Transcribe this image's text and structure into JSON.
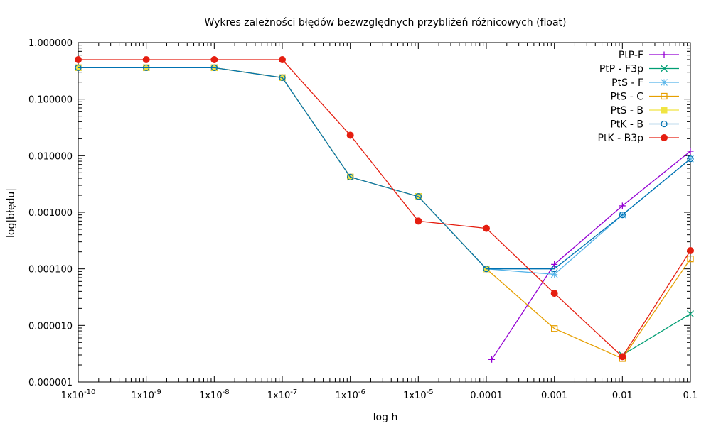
{
  "chart_data": {
    "type": "line",
    "title": "Wykres zależności błędów bezwzględnych przybliżeń różnicowych (float)",
    "xlabel": "log h",
    "ylabel": "log|błędu|",
    "x_scale": "log",
    "y_scale": "log",
    "xlim": [
      1e-10,
      0.1
    ],
    "ylim": [
      1e-06,
      1
    ],
    "x_ticks": [
      {
        "value": 1e-10,
        "base": "1x10",
        "exp": "-10"
      },
      {
        "value": 1e-09,
        "base": "1x10",
        "exp": "-9"
      },
      {
        "value": 1e-08,
        "base": "1x10",
        "exp": "-8"
      },
      {
        "value": 1e-07,
        "base": "1x10",
        "exp": "-7"
      },
      {
        "value": 1e-06,
        "base": "1x10",
        "exp": "-6"
      },
      {
        "value": 1e-05,
        "base": "1x10",
        "exp": "-5"
      },
      {
        "value": 0.0001,
        "base": "0.0001",
        "exp": ""
      },
      {
        "value": 0.001,
        "base": "0.001",
        "exp": ""
      },
      {
        "value": 0.01,
        "base": "0.01",
        "exp": ""
      },
      {
        "value": 0.1,
        "base": "0.1",
        "exp": ""
      }
    ],
    "y_ticks": [
      {
        "value": 1,
        "label": "1.000000"
      },
      {
        "value": 0.1,
        "label": "0.100000"
      },
      {
        "value": 0.01,
        "label": "0.010000"
      },
      {
        "value": 0.001,
        "label": "0.001000"
      },
      {
        "value": 0.0001,
        "label": "0.000100"
      },
      {
        "value": 1e-05,
        "label": "0.000010"
      },
      {
        "value": 1e-06,
        "label": "0.000001"
      }
    ],
    "grid": false,
    "legend_position": "top-right",
    "series": [
      {
        "name": "PtP-F",
        "color": "#9400d3",
        "marker": "plus",
        "x": [
          0.00012,
          0.001,
          0.01,
          0.1
        ],
        "y": [
          2.5e-06,
          0.00012,
          0.0013,
          0.012
        ]
      },
      {
        "name": "PtP - F3p",
        "color": "#009e73",
        "marker": "cross",
        "x": [
          0.01,
          0.1
        ],
        "y": [
          3e-06,
          1.6e-05
        ]
      },
      {
        "name": "PtS - F",
        "color": "#56b4e9",
        "marker": "star",
        "x": [
          1e-10,
          1e-09,
          1e-08,
          1e-07,
          1e-06,
          1e-05,
          0.0001,
          0.001,
          0.01,
          0.1
        ],
        "y": [
          0.36,
          0.36,
          0.36,
          0.24,
          0.0042,
          0.0019,
          0.0001,
          8e-05,
          0.0009,
          0.0088
        ]
      },
      {
        "name": "PtS - C",
        "color": "#e69f00",
        "marker": "square-open",
        "x": [
          1e-10,
          1e-09,
          1e-08,
          1e-07,
          1e-06,
          1e-05,
          0.0001,
          0.001,
          0.01,
          0.1
        ],
        "y": [
          0.36,
          0.36,
          0.36,
          0.24,
          0.0042,
          0.0019,
          0.0001,
          8.8e-06,
          2.6e-06,
          0.00015
        ]
      },
      {
        "name": "PtS - B",
        "color": "#f0e442",
        "marker": "square-filled",
        "x": [
          1e-10,
          1e-09,
          1e-08,
          1e-07,
          1e-06,
          1e-05,
          0.0001
        ],
        "y": [
          0.36,
          0.36,
          0.36,
          0.24,
          0.0042,
          0.0019,
          0.0001
        ]
      },
      {
        "name": "PtK - B",
        "color": "#0072b2",
        "marker": "circle-open",
        "x": [
          1e-10,
          1e-09,
          1e-08,
          1e-07,
          1e-06,
          1e-05,
          0.0001,
          0.001,
          0.01,
          0.1
        ],
        "y": [
          0.36,
          0.36,
          0.36,
          0.24,
          0.0042,
          0.0019,
          0.0001,
          0.0001,
          0.0009,
          0.0088
        ]
      },
      {
        "name": "PtK - B3p",
        "color": "#e51e10",
        "marker": "circle-filled",
        "x": [
          1e-10,
          1e-09,
          1e-08,
          1e-07,
          1e-06,
          1e-05,
          0.0001,
          0.001,
          0.01,
          0.1
        ],
        "y": [
          0.5,
          0.5,
          0.5,
          0.5,
          0.023,
          0.0007,
          0.00052,
          3.7e-05,
          2.8e-06,
          0.00021
        ]
      }
    ]
  }
}
